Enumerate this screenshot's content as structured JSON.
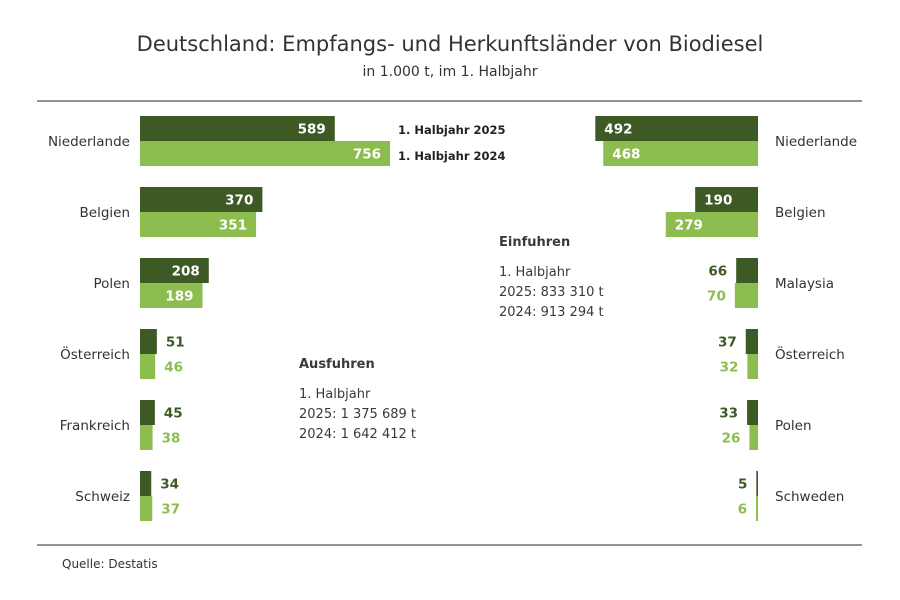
{
  "title": "Deutschland: Empfangs- und Herkunftsländer von Biodiesel",
  "subtitle": "in 1.000 t, im 1. Halbjahr",
  "source": "Quelle:  Destatis",
  "colors": {
    "series_2025": "#3d5a24",
    "series_2024": "#8dbd4f",
    "rule": "#555555"
  },
  "exports_box": {
    "heading": "Ausfuhren",
    "period": "1. Halbjahr",
    "line_2025": "2025: 1 375 689 t",
    "line_2024": "2024: 1 642 412 t"
  },
  "imports_box": {
    "heading": "Einfuhren",
    "period": "1. Halbjahr",
    "line_2025": "2025: 833 310 t",
    "line_2024": "2024: 913 294 t"
  },
  "chart_data": [
    {
      "type": "bar",
      "orientation": "horizontal",
      "categories": [
        "Niederlande",
        "Belgien",
        "Polen",
        "Österreich",
        "Frankreich",
        "Schweiz"
      ],
      "series": [
        {
          "name": "1. Halbjahr 2025",
          "values": [
            589,
            370,
            208,
            51,
            45,
            34
          ]
        },
        {
          "name": "1. Halbjahr 2024",
          "values": [
            756,
            351,
            189,
            46,
            38,
            37
          ]
        }
      ]
    },
    {
      "type": "bar",
      "orientation": "horizontal",
      "direction": "right-to-left",
      "categories": [
        "Niederlande",
        "Belgien",
        "Malaysia",
        "Österreich",
        "Polen",
        "Schweden"
      ],
      "series": [
        {
          "name": "1. Halbjahr 2025",
          "values": [
            492,
            190,
            66,
            37,
            33,
            5
          ]
        },
        {
          "name": "1. Halbjahr 2024",
          "values": [
            468,
            279,
            70,
            32,
            26,
            6
          ]
        }
      ]
    }
  ]
}
